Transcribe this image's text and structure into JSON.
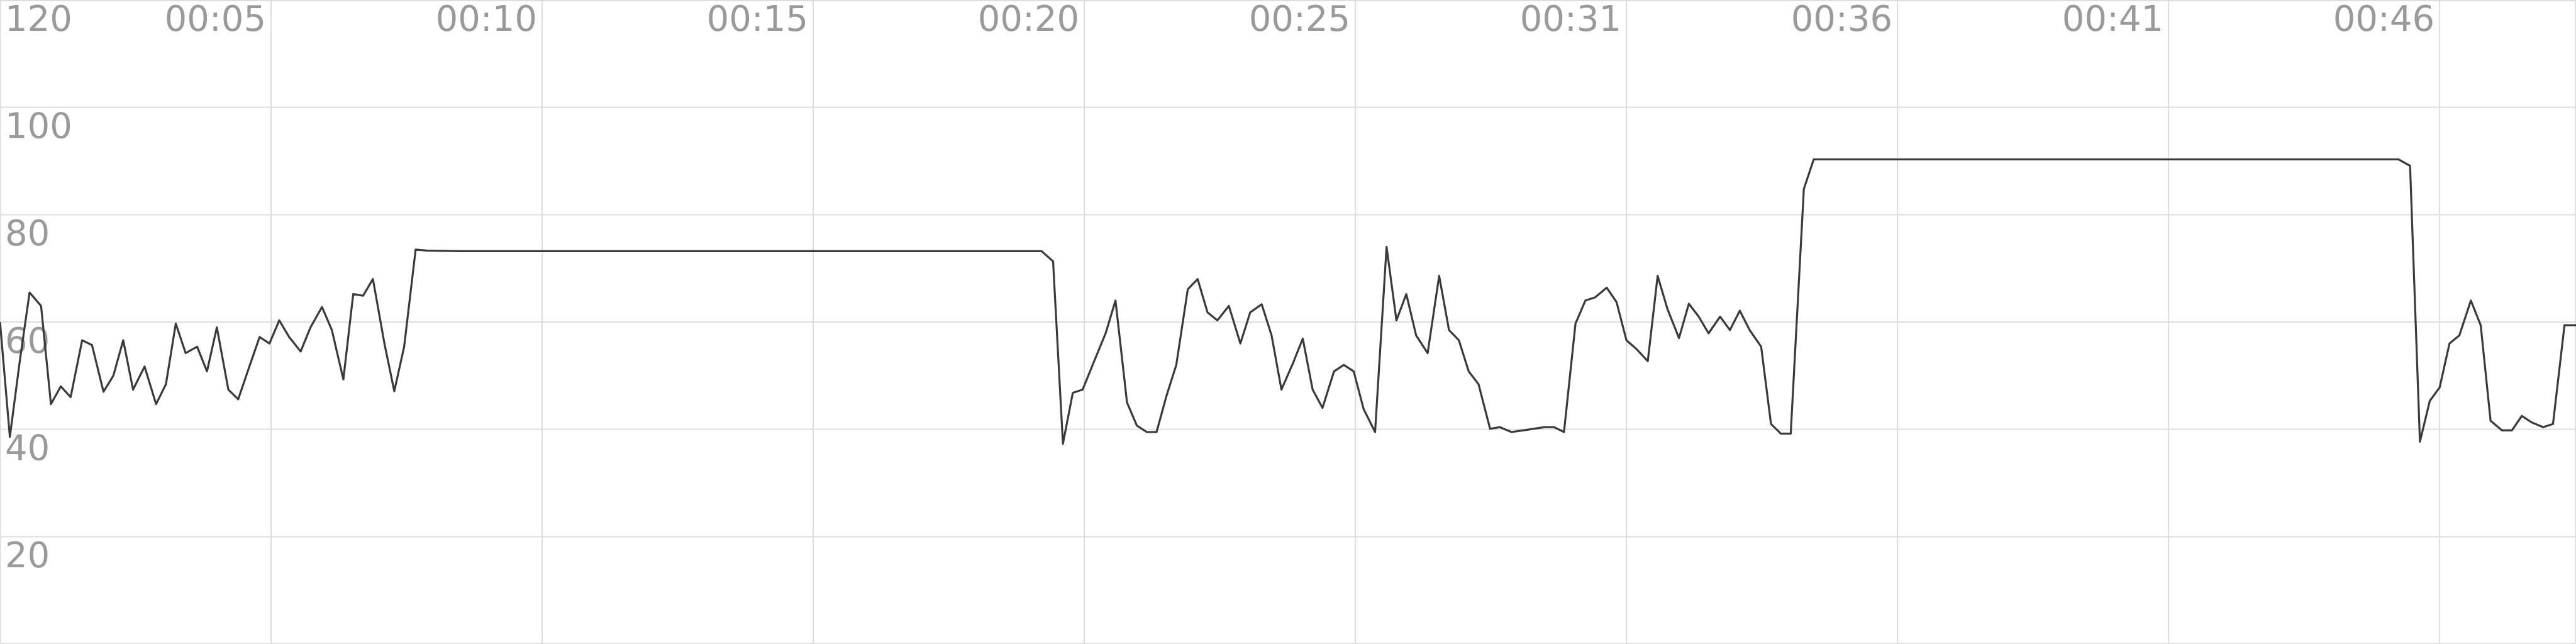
{
  "chart_data": {
    "type": "line",
    "xlim": [
      0,
      1568
    ],
    "xticks": [
      {
        "value": 165,
        "label": "00:05"
      },
      {
        "value": 330,
        "label": "00:10"
      },
      {
        "value": 495,
        "label": "00:15"
      },
      {
        "value": 660,
        "label": "00:20"
      },
      {
        "value": 825,
        "label": "00:25"
      },
      {
        "value": 990,
        "label": "00:31"
      },
      {
        "value": 1155,
        "label": "00:36"
      },
      {
        "value": 1320,
        "label": "00:41"
      },
      {
        "value": 1485,
        "label": "00:46"
      }
    ],
    "ylim": [
      0,
      120
    ],
    "yticks": [
      20,
      40,
      60,
      80,
      100,
      120
    ],
    "grid": true,
    "series": [
      {
        "color": "#3a3a3a",
        "x": [
          0,
          6,
          12,
          18,
          25,
          31,
          37,
          43,
          50,
          56,
          63,
          69,
          75,
          81,
          88,
          95,
          101,
          107,
          113,
          120,
          126,
          132,
          139,
          145,
          151,
          158,
          164,
          170,
          176,
          183,
          189,
          196,
          202,
          209,
          215,
          221,
          227,
          234,
          240,
          246,
          253,
          260,
          280,
          400,
          634,
          641,
          647,
          653,
          659,
          666,
          673,
          679,
          686,
          692,
          698,
          704,
          710,
          716,
          723,
          729,
          735,
          741,
          748,
          755,
          761,
          768,
          774,
          780,
          787,
          793,
          799,
          805,
          812,
          818,
          824,
          830,
          837,
          844,
          850,
          856,
          862,
          869,
          876,
          882,
          888,
          894,
          900,
          907,
          913,
          920,
          927,
          940,
          946,
          952,
          959,
          965,
          971,
          978,
          984,
          990,
          996,
          1003,
          1009,
          1015,
          1022,
          1028,
          1034,
          1040,
          1047,
          1053,
          1059,
          1065,
          1072,
          1078,
          1084,
          1090,
          1098,
          1104,
          1200,
          1460,
          1467,
          1473,
          1479,
          1485,
          1491,
          1497,
          1504,
          1510,
          1516,
          1523,
          1529,
          1535,
          1541,
          1548,
          1554,
          1561,
          1568
        ],
        "values": [
          60,
          38.6,
          52.6,
          65.5,
          63,
          44.7,
          48,
          46,
          56.6,
          55.7,
          47,
          50,
          56.6,
          47.4,
          51.7,
          44.7,
          48.4,
          59.7,
          54.2,
          55.4,
          50.8,
          59,
          47.4,
          45.6,
          51,
          57.2,
          56,
          60.3,
          57.2,
          54.5,
          59,
          62.8,
          58.5,
          49.3,
          65.2,
          64.9,
          68,
          56,
          47.1,
          55.4,
          73.5,
          73.3,
          73.2,
          73.2,
          73.2,
          71.3,
          37.3,
          46.8,
          47.4,
          52.7,
          57.9,
          64,
          45,
          40.7,
          39.5,
          39.5,
          46.2,
          52,
          66.1,
          68,
          61.8,
          60.3,
          63,
          56,
          61.8,
          63.3,
          57.5,
          47.4,
          52.3,
          56.9,
          47.4,
          44,
          50.8,
          52,
          50.8,
          43.8,
          39.5,
          74,
          60.3,
          65.2,
          57.5,
          54.2,
          68.6,
          58.5,
          56.6,
          50.8,
          48.4,
          40.1,
          40.4,
          39.5,
          39.8,
          40.4,
          40.4,
          39.5,
          59.7,
          64,
          64.6,
          66.4,
          63.7,
          56.6,
          55,
          52.7,
          68.6,
          62.4,
          57,
          63.4,
          61,
          57.9,
          61,
          58.5,
          62.1,
          58.5,
          55.4,
          41,
          39.2,
          39.2,
          84.8,
          90.3,
          90.3,
          90.3,
          89.1,
          37.7,
          45.3,
          47.8,
          56,
          57.5,
          64,
          59.4,
          41.6,
          39.8,
          39.8,
          42.5,
          41.3,
          40.4,
          41,
          59.4,
          59.4
        ]
      }
    ]
  }
}
